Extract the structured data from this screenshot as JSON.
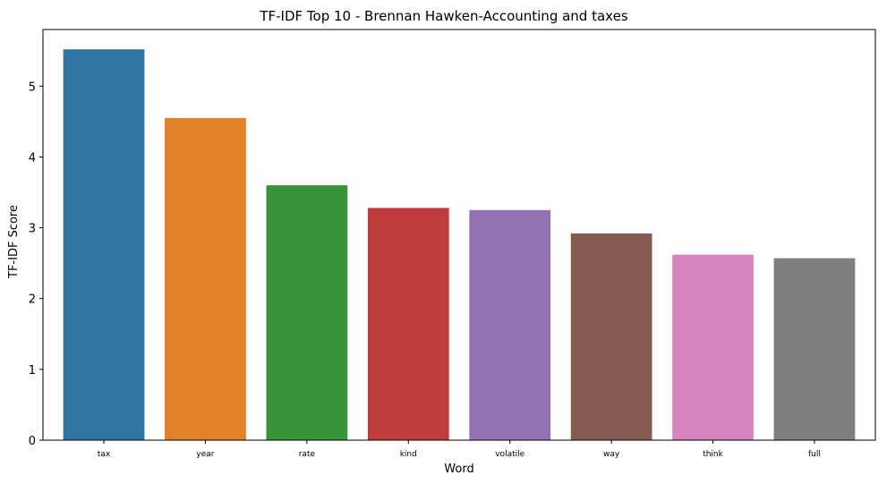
{
  "chart_data": {
    "type": "bar",
    "title": "TF-IDF Top 10 - Brennan Hawken-Accounting and taxes",
    "xlabel": "Word",
    "ylabel": "TF-IDF Score",
    "categories": [
      "tax",
      "year",
      "rate",
      "kind",
      "volatile",
      "way",
      "think",
      "full"
    ],
    "values": [
      5.52,
      4.55,
      3.6,
      3.28,
      3.25,
      2.92,
      2.62,
      2.57
    ],
    "colors": [
      "#3274a1",
      "#e1812c",
      "#3a923a",
      "#c03d3e",
      "#9372b2",
      "#845b53",
      "#d684bd",
      "#7f7f7f"
    ],
    "ylim": [
      0,
      5.8
    ],
    "yticks": [
      0,
      1,
      2,
      3,
      4,
      5
    ],
    "grid": false,
    "legend": "none"
  }
}
